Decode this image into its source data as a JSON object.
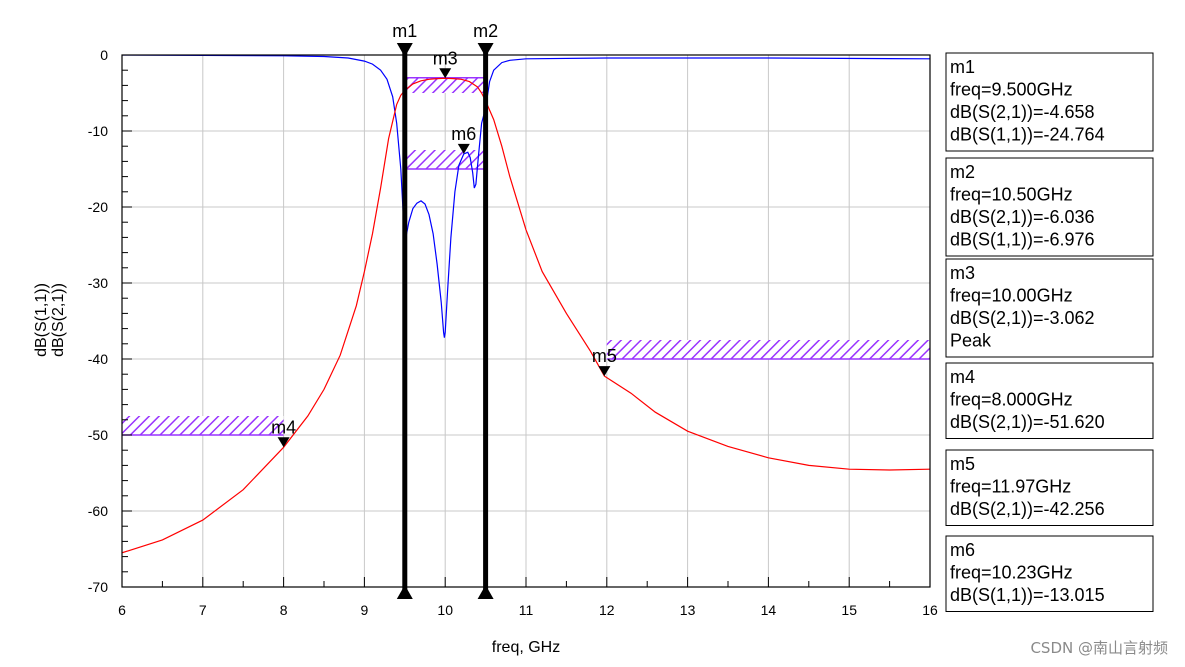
{
  "chart_data": {
    "type": "line",
    "xlabel": "freq, GHz",
    "ylabel_lines": [
      {
        "text": "dB(S(1,1))",
        "color": "#0000ff"
      },
      {
        "text": "dB(S(2,1))",
        "color": "#ff0000"
      }
    ],
    "xlim": [
      6,
      16
    ],
    "ylim": [
      -70,
      0
    ],
    "x_ticks": [
      "6",
      "7",
      "8",
      "9",
      "10",
      "11",
      "12",
      "13",
      "14",
      "15",
      "16"
    ],
    "y_ticks": [
      "0",
      "-10",
      "-20",
      "-30",
      "-40",
      "-50",
      "-60",
      "-70"
    ],
    "grid": true,
    "series": [
      {
        "name": "dB(S(1,1))",
        "color": "#0000ff",
        "points": [
          [
            6,
            0
          ],
          [
            7,
            -0.05
          ],
          [
            8,
            -0.1
          ],
          [
            8.5,
            -0.2
          ],
          [
            8.8,
            -0.4
          ],
          [
            9.0,
            -0.8
          ],
          [
            9.1,
            -1.2
          ],
          [
            9.2,
            -2.0
          ],
          [
            9.28,
            -3.2
          ],
          [
            9.35,
            -5.5
          ],
          [
            9.4,
            -9
          ],
          [
            9.45,
            -15
          ],
          [
            9.5,
            -24.764
          ],
          [
            9.55,
            -22
          ],
          [
            9.6,
            -20.2
          ],
          [
            9.65,
            -19.5
          ],
          [
            9.7,
            -19.2
          ],
          [
            9.75,
            -19.6
          ],
          [
            9.8,
            -21
          ],
          [
            9.85,
            -23.5
          ],
          [
            9.9,
            -27.5
          ],
          [
            9.95,
            -32.5
          ],
          [
            9.98,
            -36.5
          ],
          [
            9.99,
            -37.2
          ],
          [
            10.0,
            -36.5
          ],
          [
            10.03,
            -31
          ],
          [
            10.07,
            -24
          ],
          [
            10.12,
            -18
          ],
          [
            10.17,
            -14.5
          ],
          [
            10.23,
            -13.015
          ],
          [
            10.28,
            -12.8
          ],
          [
            10.31,
            -13.5
          ],
          [
            10.34,
            -15.5
          ],
          [
            10.36,
            -17.5
          ],
          [
            10.38,
            -17.0
          ],
          [
            10.41,
            -13.5
          ],
          [
            10.45,
            -9
          ],
          [
            10.5,
            -6.976
          ],
          [
            10.55,
            -3.5
          ],
          [
            10.6,
            -2.0
          ],
          [
            10.7,
            -1.0
          ],
          [
            10.8,
            -0.7
          ],
          [
            11,
            -0.5
          ],
          [
            12,
            -0.4
          ],
          [
            14,
            -0.4
          ],
          [
            16,
            -0.5
          ]
        ]
      },
      {
        "name": "dB(S(2,1))",
        "color": "#ff0000",
        "points": [
          [
            6,
            -65.5
          ],
          [
            6.5,
            -63.8
          ],
          [
            7,
            -61.2
          ],
          [
            7.5,
            -57.2
          ],
          [
            8,
            -51.62
          ],
          [
            8.3,
            -47.5
          ],
          [
            8.5,
            -44
          ],
          [
            8.7,
            -39.5
          ],
          [
            8.9,
            -33
          ],
          [
            9.0,
            -28.5
          ],
          [
            9.1,
            -23.5
          ],
          [
            9.2,
            -17.5
          ],
          [
            9.3,
            -11
          ],
          [
            9.4,
            -6.5
          ],
          [
            9.45,
            -5.3
          ],
          [
            9.5,
            -4.658
          ],
          [
            9.6,
            -3.8
          ],
          [
            9.7,
            -3.4
          ],
          [
            9.8,
            -3.2
          ],
          [
            9.9,
            -3.1
          ],
          [
            10.0,
            -3.062
          ],
          [
            10.1,
            -3.1
          ],
          [
            10.2,
            -3.2
          ],
          [
            10.3,
            -3.5
          ],
          [
            10.4,
            -4.2
          ],
          [
            10.45,
            -5.0
          ],
          [
            10.5,
            -6.036
          ],
          [
            10.6,
            -8.5
          ],
          [
            10.7,
            -12
          ],
          [
            10.8,
            -16
          ],
          [
            11.0,
            -23
          ],
          [
            11.2,
            -28.5
          ],
          [
            11.5,
            -34
          ],
          [
            11.8,
            -39
          ],
          [
            11.97,
            -42.256
          ],
          [
            12.3,
            -44.5
          ],
          [
            12.6,
            -47
          ],
          [
            13,
            -49.5
          ],
          [
            13.5,
            -51.5
          ],
          [
            14,
            -53
          ],
          [
            14.5,
            -54
          ],
          [
            15,
            -54.5
          ],
          [
            15.5,
            -54.6
          ],
          [
            16,
            -54.5
          ]
        ]
      }
    ],
    "vertical_markers": [
      {
        "name": "m1",
        "x": 9.5
      },
      {
        "name": "m2",
        "x": 10.5
      }
    ],
    "point_markers": [
      {
        "name": "m3",
        "x": 10.0,
        "y": -3.062,
        "label_dx": 0
      },
      {
        "name": "m6",
        "x": 10.23,
        "y": -13.015,
        "label_dx": 0
      },
      {
        "name": "m4",
        "x": 8.0,
        "y": -51.62,
        "label_dx": 0
      },
      {
        "name": "m5",
        "x": 11.97,
        "y": -42.256,
        "label_dx": 0
      }
    ],
    "mask_regions": [
      {
        "name": "passband-upper-mask",
        "x0": 9.5,
        "x1": 10.5,
        "y_line": -3,
        "y_hatch_to": -5
      },
      {
        "name": "passband-return-loss-mask",
        "x0": 9.5,
        "x1": 10.5,
        "y_line": -15,
        "y_hatch_to": -12.5
      },
      {
        "name": "low-stopband-mask",
        "x0": 6,
        "x1": 8,
        "y_line": -50,
        "y_hatch_to": -47.5
      },
      {
        "name": "high-stopband-mask",
        "x0": 12,
        "x1": 16,
        "y_line": -40,
        "y_hatch_to": -37.5
      }
    ],
    "mask_color": "#9933ff"
  },
  "marker_boxes": [
    {
      "name": "m1",
      "lines": [
        "m1",
        "freq=9.500GHz",
        "dB(S(2,1))=-4.658",
        "dB(S(1,1))=-24.764"
      ]
    },
    {
      "name": "m2",
      "lines": [
        "m2",
        "freq=10.50GHz",
        "dB(S(2,1))=-6.036",
        "dB(S(1,1))=-6.976"
      ]
    },
    {
      "name": "m3",
      "lines": [
        "m3",
        "freq=10.00GHz",
        "dB(S(2,1))=-3.062",
        "Peak"
      ]
    },
    {
      "name": "m4",
      "lines": [
        "m4",
        "freq=8.000GHz",
        "dB(S(2,1))=-51.620"
      ]
    },
    {
      "name": "m5",
      "lines": [
        "m5",
        "freq=11.97GHz",
        "dB(S(2,1))=-42.256"
      ]
    },
    {
      "name": "m6",
      "lines": [
        "m6",
        "freq=10.23GHz",
        "dB(S(1,1))=-13.015"
      ]
    }
  ],
  "watermark": "CSDN @南山言射频"
}
